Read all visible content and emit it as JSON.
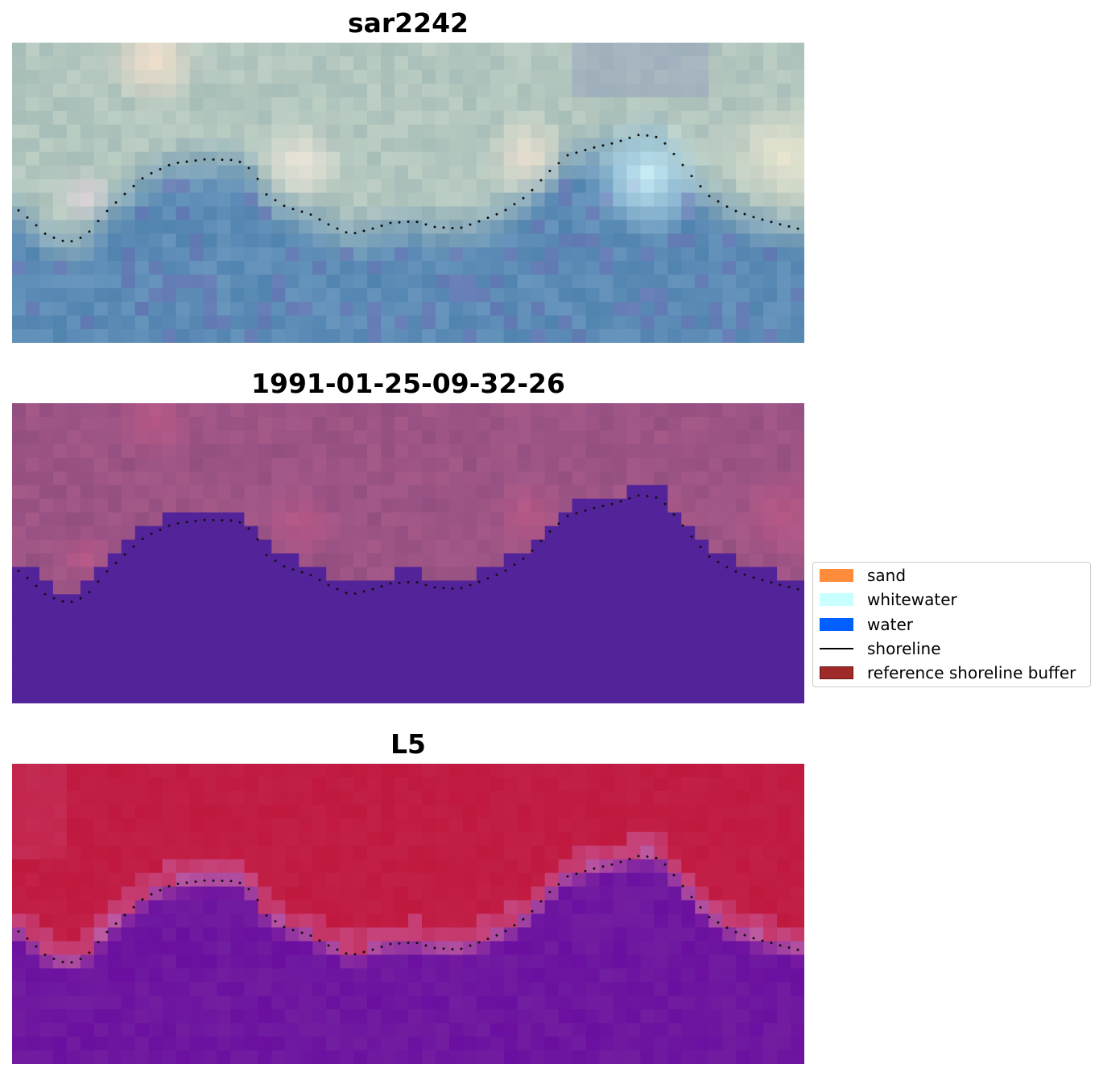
{
  "panels": [
    {
      "title": "sar2242"
    },
    {
      "title": "1991-01-25-09-32-26"
    },
    {
      "title": "L5"
    }
  ],
  "legend": {
    "items": [
      {
        "label": "sand",
        "kind": "patch",
        "color": "#ff8c3b"
      },
      {
        "label": "whitewater",
        "kind": "patch",
        "color": "#c8ffff"
      },
      {
        "label": "water",
        "kind": "patch",
        "color": "#005ffe"
      },
      {
        "label": "shoreline",
        "kind": "line",
        "color": "#000000"
      },
      {
        "label": "reference shoreline buffer",
        "kind": "patch",
        "color": "#a02a2a"
      }
    ]
  },
  "colors": {
    "classified_land": "#9c5485",
    "classified_water": "#53239a",
    "index_land": "#c0183f",
    "index_water": "#6a0fa0"
  }
}
